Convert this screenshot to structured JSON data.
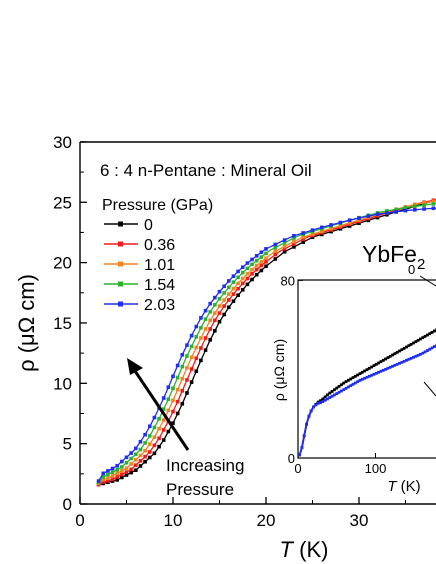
{
  "chart_data": [
    {
      "type": "line",
      "role": "main",
      "xlabel_italic": "T",
      "xlabel_unit": "(K)",
      "ylabel": "ρ (μΩ cm)",
      "xlim": [
        0,
        40
      ],
      "ylim": [
        0,
        30
      ],
      "x_ticks": [
        0,
        10,
        20,
        30
      ],
      "y_ticks": [
        0,
        5,
        10,
        15,
        20,
        25,
        30
      ],
      "grid": false,
      "annotations": {
        "sample_text": "6 : 4 n-Pentane : Mineral Oil",
        "compound": "YbFe",
        "compound_subscript": "2",
        "arrow_label_1": "Increasing",
        "arrow_label_2": "Pressure"
      },
      "legend": {
        "title": "Pressure (GPa)",
        "placement": "left"
      },
      "series": [
        {
          "name": "0",
          "color": "#000000",
          "x_shift": 0,
          "x": [
            2,
            4,
            6,
            8,
            9,
            10,
            11,
            12,
            13,
            14,
            15,
            16,
            17,
            18,
            19,
            20,
            22,
            25,
            28,
            31,
            34,
            37,
            40
          ],
          "y": [
            1.6,
            2.0,
            2.8,
            4.2,
            5.3,
            6.7,
            8.3,
            10.1,
            11.9,
            13.6,
            15.1,
            16.3,
            17.3,
            18.2,
            19.0,
            19.7,
            20.9,
            22.1,
            22.8,
            23.5,
            24.2,
            24.9,
            25.5
          ]
        },
        {
          "name": "0.36",
          "color": "#ee1c1c",
          "x_shift": -0.6,
          "x": [
            2,
            4,
            6,
            8,
            9,
            10,
            11,
            12,
            13,
            14,
            15,
            16,
            17,
            18,
            19,
            20,
            22,
            25,
            28,
            31,
            34,
            37,
            40
          ],
          "y": [
            1.6,
            2.0,
            2.8,
            4.2,
            5.3,
            6.7,
            8.3,
            10.1,
            11.9,
            13.6,
            15.1,
            16.3,
            17.3,
            18.2,
            19.0,
            19.7,
            20.9,
            22.1,
            22.8,
            23.5,
            24.2,
            24.9,
            25.4
          ]
        },
        {
          "name": "1.01",
          "color": "#f58220",
          "x_shift": -1.1,
          "x": [
            2,
            4,
            6,
            8,
            9,
            10,
            11,
            12,
            13,
            14,
            15,
            16,
            17,
            18,
            19,
            20,
            22,
            25,
            28,
            31,
            34,
            37,
            40
          ],
          "y": [
            1.7,
            2.1,
            2.9,
            4.3,
            5.4,
            6.8,
            8.4,
            10.2,
            12.0,
            13.6,
            15.1,
            16.3,
            17.3,
            18.2,
            19.0,
            19.7,
            20.9,
            22.1,
            22.8,
            23.5,
            24.2,
            24.8,
            25.2
          ]
        },
        {
          "name": "1.54",
          "color": "#2ab32a",
          "x_shift": -1.6,
          "x": [
            2,
            4,
            6,
            8,
            9,
            10,
            11,
            12,
            13,
            14,
            15,
            16,
            17,
            18,
            19,
            20,
            22,
            25,
            28,
            31,
            34,
            37,
            40
          ],
          "y": [
            1.8,
            2.2,
            3.0,
            4.4,
            5.5,
            6.9,
            8.5,
            10.3,
            12.1,
            13.7,
            15.2,
            16.4,
            17.4,
            18.3,
            19.1,
            19.8,
            21.0,
            22.2,
            22.9,
            23.6,
            24.2,
            24.6,
            24.9
          ]
        },
        {
          "name": "2.03",
          "color": "#1f2ef0",
          "x_shift": -2.1,
          "x": [
            2,
            4,
            6,
            8,
            9,
            10,
            11,
            12,
            13,
            14,
            15,
            16,
            17,
            18,
            19,
            20,
            22,
            25,
            28,
            31,
            34,
            37,
            40
          ],
          "y": [
            1.9,
            2.3,
            3.1,
            4.5,
            5.6,
            7.0,
            8.6,
            10.4,
            12.2,
            13.8,
            15.3,
            16.5,
            17.5,
            18.4,
            19.2,
            19.9,
            21.1,
            22.2,
            22.9,
            23.5,
            24.0,
            24.3,
            24.5
          ]
        }
      ]
    },
    {
      "type": "line",
      "role": "inset",
      "xlabel_italic": "T",
      "xlabel_unit": "(K)",
      "ylabel": "ρ (μΩ cm)",
      "xlim": [
        0,
        250
      ],
      "ylim": [
        0,
        80
      ],
      "x_ticks": [
        0,
        100
      ],
      "y_ticks": [
        0,
        80
      ],
      "annotations": {
        "top_label": "0"
      },
      "series": [
        {
          "name": "0",
          "color": "#000000",
          "x": [
            0,
            3,
            6,
            10,
            15,
            20,
            25,
            30,
            40,
            60,
            80,
            100,
            120,
            140,
            160,
            180,
            200
          ],
          "y": [
            0,
            2,
            6,
            14,
            20,
            23,
            25,
            26,
            29,
            34,
            38,
            42,
            46,
            50,
            54,
            58,
            62
          ]
        },
        {
          "name": "2.03",
          "color": "#1f2ef0",
          "x": [
            0,
            3,
            6,
            10,
            15,
            20,
            25,
            30,
            40,
            60,
            80,
            100,
            120,
            140,
            160,
            180,
            200
          ],
          "y": [
            0,
            2,
            6,
            14,
            20,
            23,
            24.5,
            25,
            27,
            31,
            35,
            38,
            41,
            44,
            47,
            51,
            55
          ]
        }
      ]
    }
  ]
}
